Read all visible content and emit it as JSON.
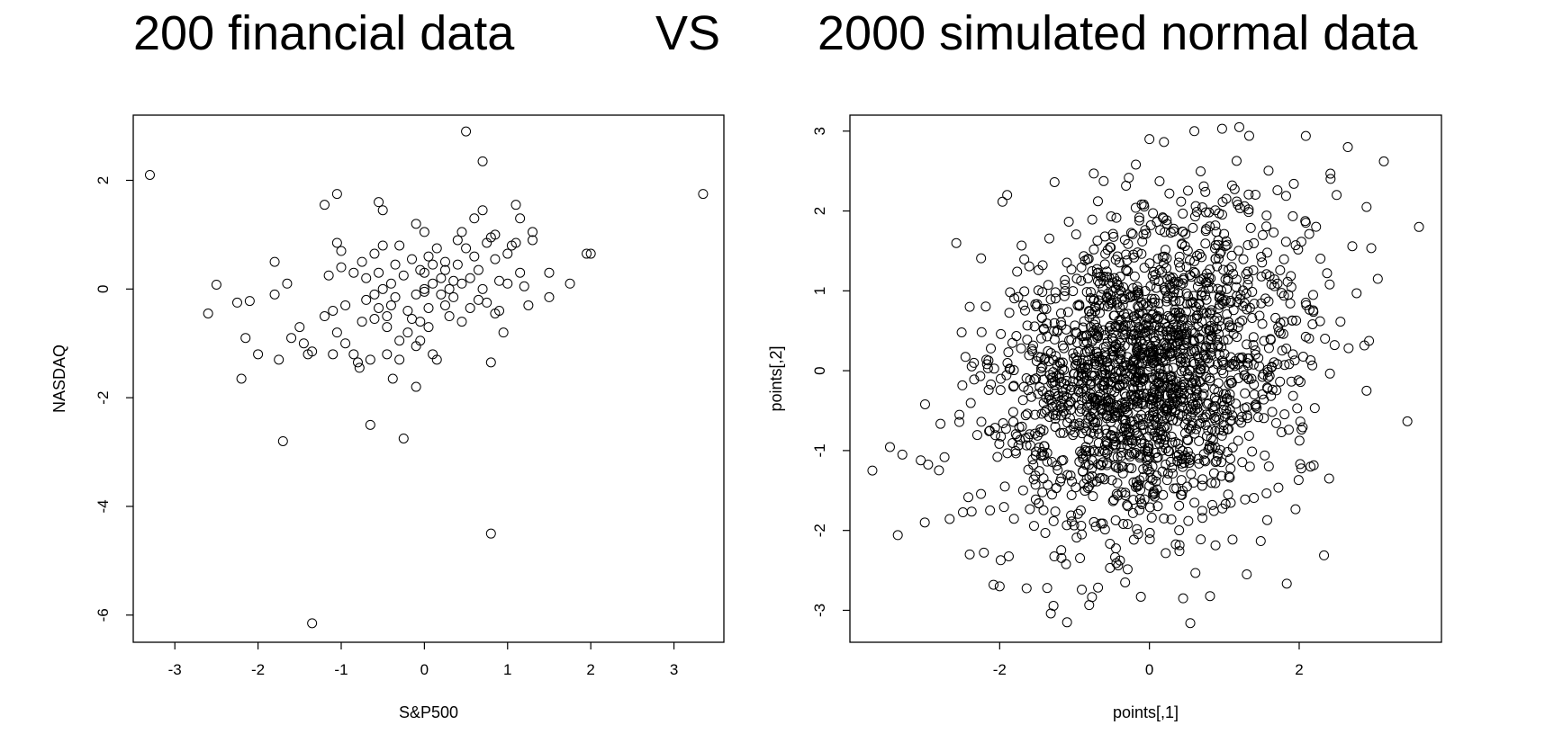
{
  "titles": {
    "left": "200 financial data",
    "middle": "VS",
    "right": "2000 simulated normal data"
  },
  "chart_data": [
    {
      "type": "scatter",
      "title": "200 financial data",
      "xlabel": "S&P500",
      "ylabel": "NASDAQ",
      "xlim": [
        -3.5,
        3.6
      ],
      "ylim": [
        -6.5,
        3.2
      ],
      "xticks": [
        -3,
        -2,
        -1,
        0,
        1,
        2,
        3
      ],
      "yticks": [
        -6,
        -4,
        -2,
        0,
        2
      ],
      "marker": "open-circle",
      "points": [
        [
          -3.3,
          2.1
        ],
        [
          3.35,
          1.75
        ],
        [
          -2.6,
          -0.45
        ],
        [
          -2.5,
          0.08
        ],
        [
          -2.25,
          -0.25
        ],
        [
          -2.2,
          -1.65
        ],
        [
          -2.15,
          -0.9
        ],
        [
          -2.1,
          -0.22
        ],
        [
          -2.0,
          -1.2
        ],
        [
          -1.8,
          0.5
        ],
        [
          -1.8,
          -0.1
        ],
        [
          -1.75,
          -1.3
        ],
        [
          -1.7,
          -2.8
        ],
        [
          -1.65,
          0.1
        ],
        [
          -1.6,
          -0.9
        ],
        [
          -1.5,
          -0.7
        ],
        [
          -1.45,
          -1.0
        ],
        [
          -1.4,
          -1.2
        ],
        [
          -1.35,
          -1.15
        ],
        [
          -1.35,
          -6.15
        ],
        [
          -1.2,
          1.55
        ],
        [
          -1.2,
          -0.5
        ],
        [
          -1.15,
          0.25
        ],
        [
          -1.1,
          -0.4
        ],
        [
          -1.1,
          -1.2
        ],
        [
          -1.05,
          1.75
        ],
        [
          -1.05,
          0.85
        ],
        [
          -1.05,
          -0.8
        ],
        [
          -1.0,
          0.4
        ],
        [
          -1.0,
          0.7
        ],
        [
          -0.95,
          -0.3
        ],
        [
          -0.95,
          -1.0
        ],
        [
          -0.85,
          0.3
        ],
        [
          -0.85,
          -1.2
        ],
        [
          -0.8,
          -1.35
        ],
        [
          -0.78,
          -1.45
        ],
        [
          -0.75,
          0.5
        ],
        [
          -0.75,
          -0.6
        ],
        [
          -0.7,
          0.2
        ],
        [
          -0.7,
          -0.2
        ],
        [
          -0.65,
          -1.3
        ],
        [
          -0.65,
          -2.5
        ],
        [
          -0.6,
          0.65
        ],
        [
          -0.6,
          -0.1
        ],
        [
          -0.6,
          -0.55
        ],
        [
          -0.55,
          1.6
        ],
        [
          -0.55,
          0.3
        ],
        [
          -0.55,
          -0.35
        ],
        [
          -0.5,
          1.45
        ],
        [
          -0.5,
          0.8
        ],
        [
          -0.5,
          -0.0
        ],
        [
          -0.45,
          -0.5
        ],
        [
          -0.45,
          -0.7
        ],
        [
          -0.45,
          -1.2
        ],
        [
          -0.4,
          0.1
        ],
        [
          -0.4,
          -0.3
        ],
        [
          -0.38,
          -1.65
        ],
        [
          -0.35,
          0.45
        ],
        [
          -0.35,
          -0.15
        ],
        [
          -0.3,
          0.8
        ],
        [
          -0.3,
          -0.95
        ],
        [
          -0.3,
          -1.3
        ],
        [
          -0.25,
          -2.75
        ],
        [
          -0.25,
          0.25
        ],
        [
          -0.2,
          -0.8
        ],
        [
          -0.2,
          -0.4
        ],
        [
          -0.15,
          0.55
        ],
        [
          -0.15,
          -0.55
        ],
        [
          -0.1,
          1.2
        ],
        [
          -0.1,
          -0.1
        ],
        [
          -0.1,
          -1.8
        ],
        [
          -0.1,
          -1.05
        ],
        [
          -0.05,
          0.35
        ],
        [
          -0.05,
          -0.6
        ],
        [
          -0.05,
          -0.95
        ],
        [
          0.0,
          0.0
        ],
        [
          0.0,
          0.3
        ],
        [
          0.0,
          -0.05
        ],
        [
          0.0,
          1.05
        ],
        [
          0.05,
          0.6
        ],
        [
          0.05,
          -0.35
        ],
        [
          0.05,
          -0.7
        ],
        [
          0.1,
          0.45
        ],
        [
          0.1,
          0.1
        ],
        [
          0.1,
          -1.2
        ],
        [
          0.15,
          -1.3
        ],
        [
          0.15,
          0.75
        ],
        [
          0.2,
          0.2
        ],
        [
          0.2,
          -0.1
        ],
        [
          0.25,
          0.5
        ],
        [
          0.25,
          0.35
        ],
        [
          0.25,
          -0.3
        ],
        [
          0.3,
          0.0
        ],
        [
          0.3,
          -0.5
        ],
        [
          0.35,
          0.15
        ],
        [
          0.35,
          -0.15
        ],
        [
          0.4,
          0.9
        ],
        [
          0.4,
          0.45
        ],
        [
          0.45,
          1.05
        ],
        [
          0.45,
          0.1
        ],
        [
          0.45,
          -0.6
        ],
        [
          0.5,
          2.9
        ],
        [
          0.5,
          0.75
        ],
        [
          0.55,
          0.2
        ],
        [
          0.55,
          -0.35
        ],
        [
          0.6,
          1.3
        ],
        [
          0.6,
          0.6
        ],
        [
          0.65,
          -0.2
        ],
        [
          0.65,
          0.35
        ],
        [
          0.7,
          2.35
        ],
        [
          0.7,
          1.45
        ],
        [
          0.7,
          0.0
        ],
        [
          0.75,
          -0.25
        ],
        [
          0.75,
          0.85
        ],
        [
          0.8,
          0.95
        ],
        [
          0.8,
          -1.35
        ],
        [
          0.8,
          -4.5
        ],
        [
          0.85,
          1.0
        ],
        [
          0.85,
          0.55
        ],
        [
          0.85,
          -0.45
        ],
        [
          0.9,
          0.15
        ],
        [
          0.9,
          -0.4
        ],
        [
          0.95,
          -0.8
        ],
        [
          1.0,
          0.65
        ],
        [
          1.0,
          0.1
        ],
        [
          1.05,
          0.8
        ],
        [
          1.1,
          1.55
        ],
        [
          1.1,
          0.85
        ],
        [
          1.15,
          0.3
        ],
        [
          1.15,
          1.3
        ],
        [
          1.2,
          0.05
        ],
        [
          1.25,
          -0.3
        ],
        [
          1.3,
          0.9
        ],
        [
          1.3,
          1.05
        ],
        [
          1.5,
          0.3
        ],
        [
          1.5,
          -0.15
        ],
        [
          1.75,
          0.1
        ],
        [
          1.95,
          0.65
        ],
        [
          2.0,
          0.65
        ]
      ]
    },
    {
      "type": "scatter",
      "title": "2000 simulated normal data",
      "xlabel": "points[,1]",
      "ylabel": "points[,2]",
      "xlim": [
        -4.0,
        3.9
      ],
      "ylim": [
        -3.4,
        3.2
      ],
      "xticks": [
        -2,
        0,
        2
      ],
      "yticks": [
        -3,
        -2,
        -1,
        0,
        1,
        2,
        3
      ],
      "marker": "open-circle",
      "n_points": 2000,
      "correlation": 0.25,
      "points": [
        [
          -3.7,
          -1.25
        ],
        [
          -3.3,
          -1.05
        ],
        [
          -3.0,
          -1.9
        ],
        [
          3.6,
          1.8
        ],
        [
          2.9,
          2.05
        ],
        [
          2.65,
          2.8
        ],
        [
          3.05,
          1.15
        ],
        [
          2.9,
          -0.25
        ],
        [
          -1.1,
          -3.15
        ],
        [
          0.45,
          -2.85
        ],
        [
          1.2,
          3.05
        ],
        [
          0.6,
          3.0
        ],
        [
          0.0,
          2.9
        ],
        [
          -2.4,
          -2.3
        ],
        [
          -2.0,
          -2.7
        ],
        [
          2.5,
          2.2
        ],
        [
          2.4,
          -1.35
        ],
        [
          1.3,
          -2.55
        ],
        [
          -2.4,
          0.8
        ],
        [
          -1.9,
          2.2
        ]
      ]
    }
  ]
}
